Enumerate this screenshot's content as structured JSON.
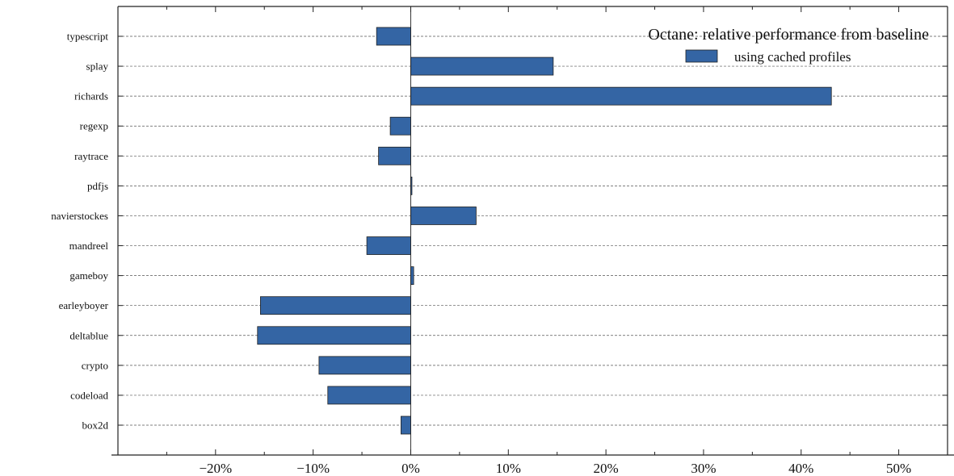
{
  "chart_data": {
    "type": "bar",
    "orientation": "horizontal",
    "title": "",
    "xlabel": "",
    "ylabel": "",
    "categories": [
      "box2d",
      "codeload",
      "crypto",
      "deltablue",
      "earleyboyer",
      "gameboy",
      "mandreel",
      "navierstockes",
      "pdfjs",
      "raytrace",
      "regexp",
      "richards",
      "splay",
      "typescript"
    ],
    "series": [
      {
        "name": "using cached profiles",
        "values": [
          -1.0,
          -8.5,
          -9.4,
          -15.7,
          -15.4,
          0.3,
          -4.5,
          6.7,
          0.05,
          -3.3,
          -2.1,
          43.1,
          14.6,
          -3.5
        ],
        "color": "#3465a4"
      }
    ],
    "xlim": [
      -30,
      55
    ],
    "x_ticks": [
      -20,
      -10,
      0,
      10,
      20,
      30,
      40,
      50
    ],
    "x_tick_labels": [
      "−20%",
      "−10%",
      "0%",
      "10%",
      "20%",
      "30%",
      "40%",
      "50%"
    ],
    "grid": "horizontal dashed",
    "legend": {
      "title": "Octane: relative performance from baseline",
      "placement": "top-right"
    }
  }
}
